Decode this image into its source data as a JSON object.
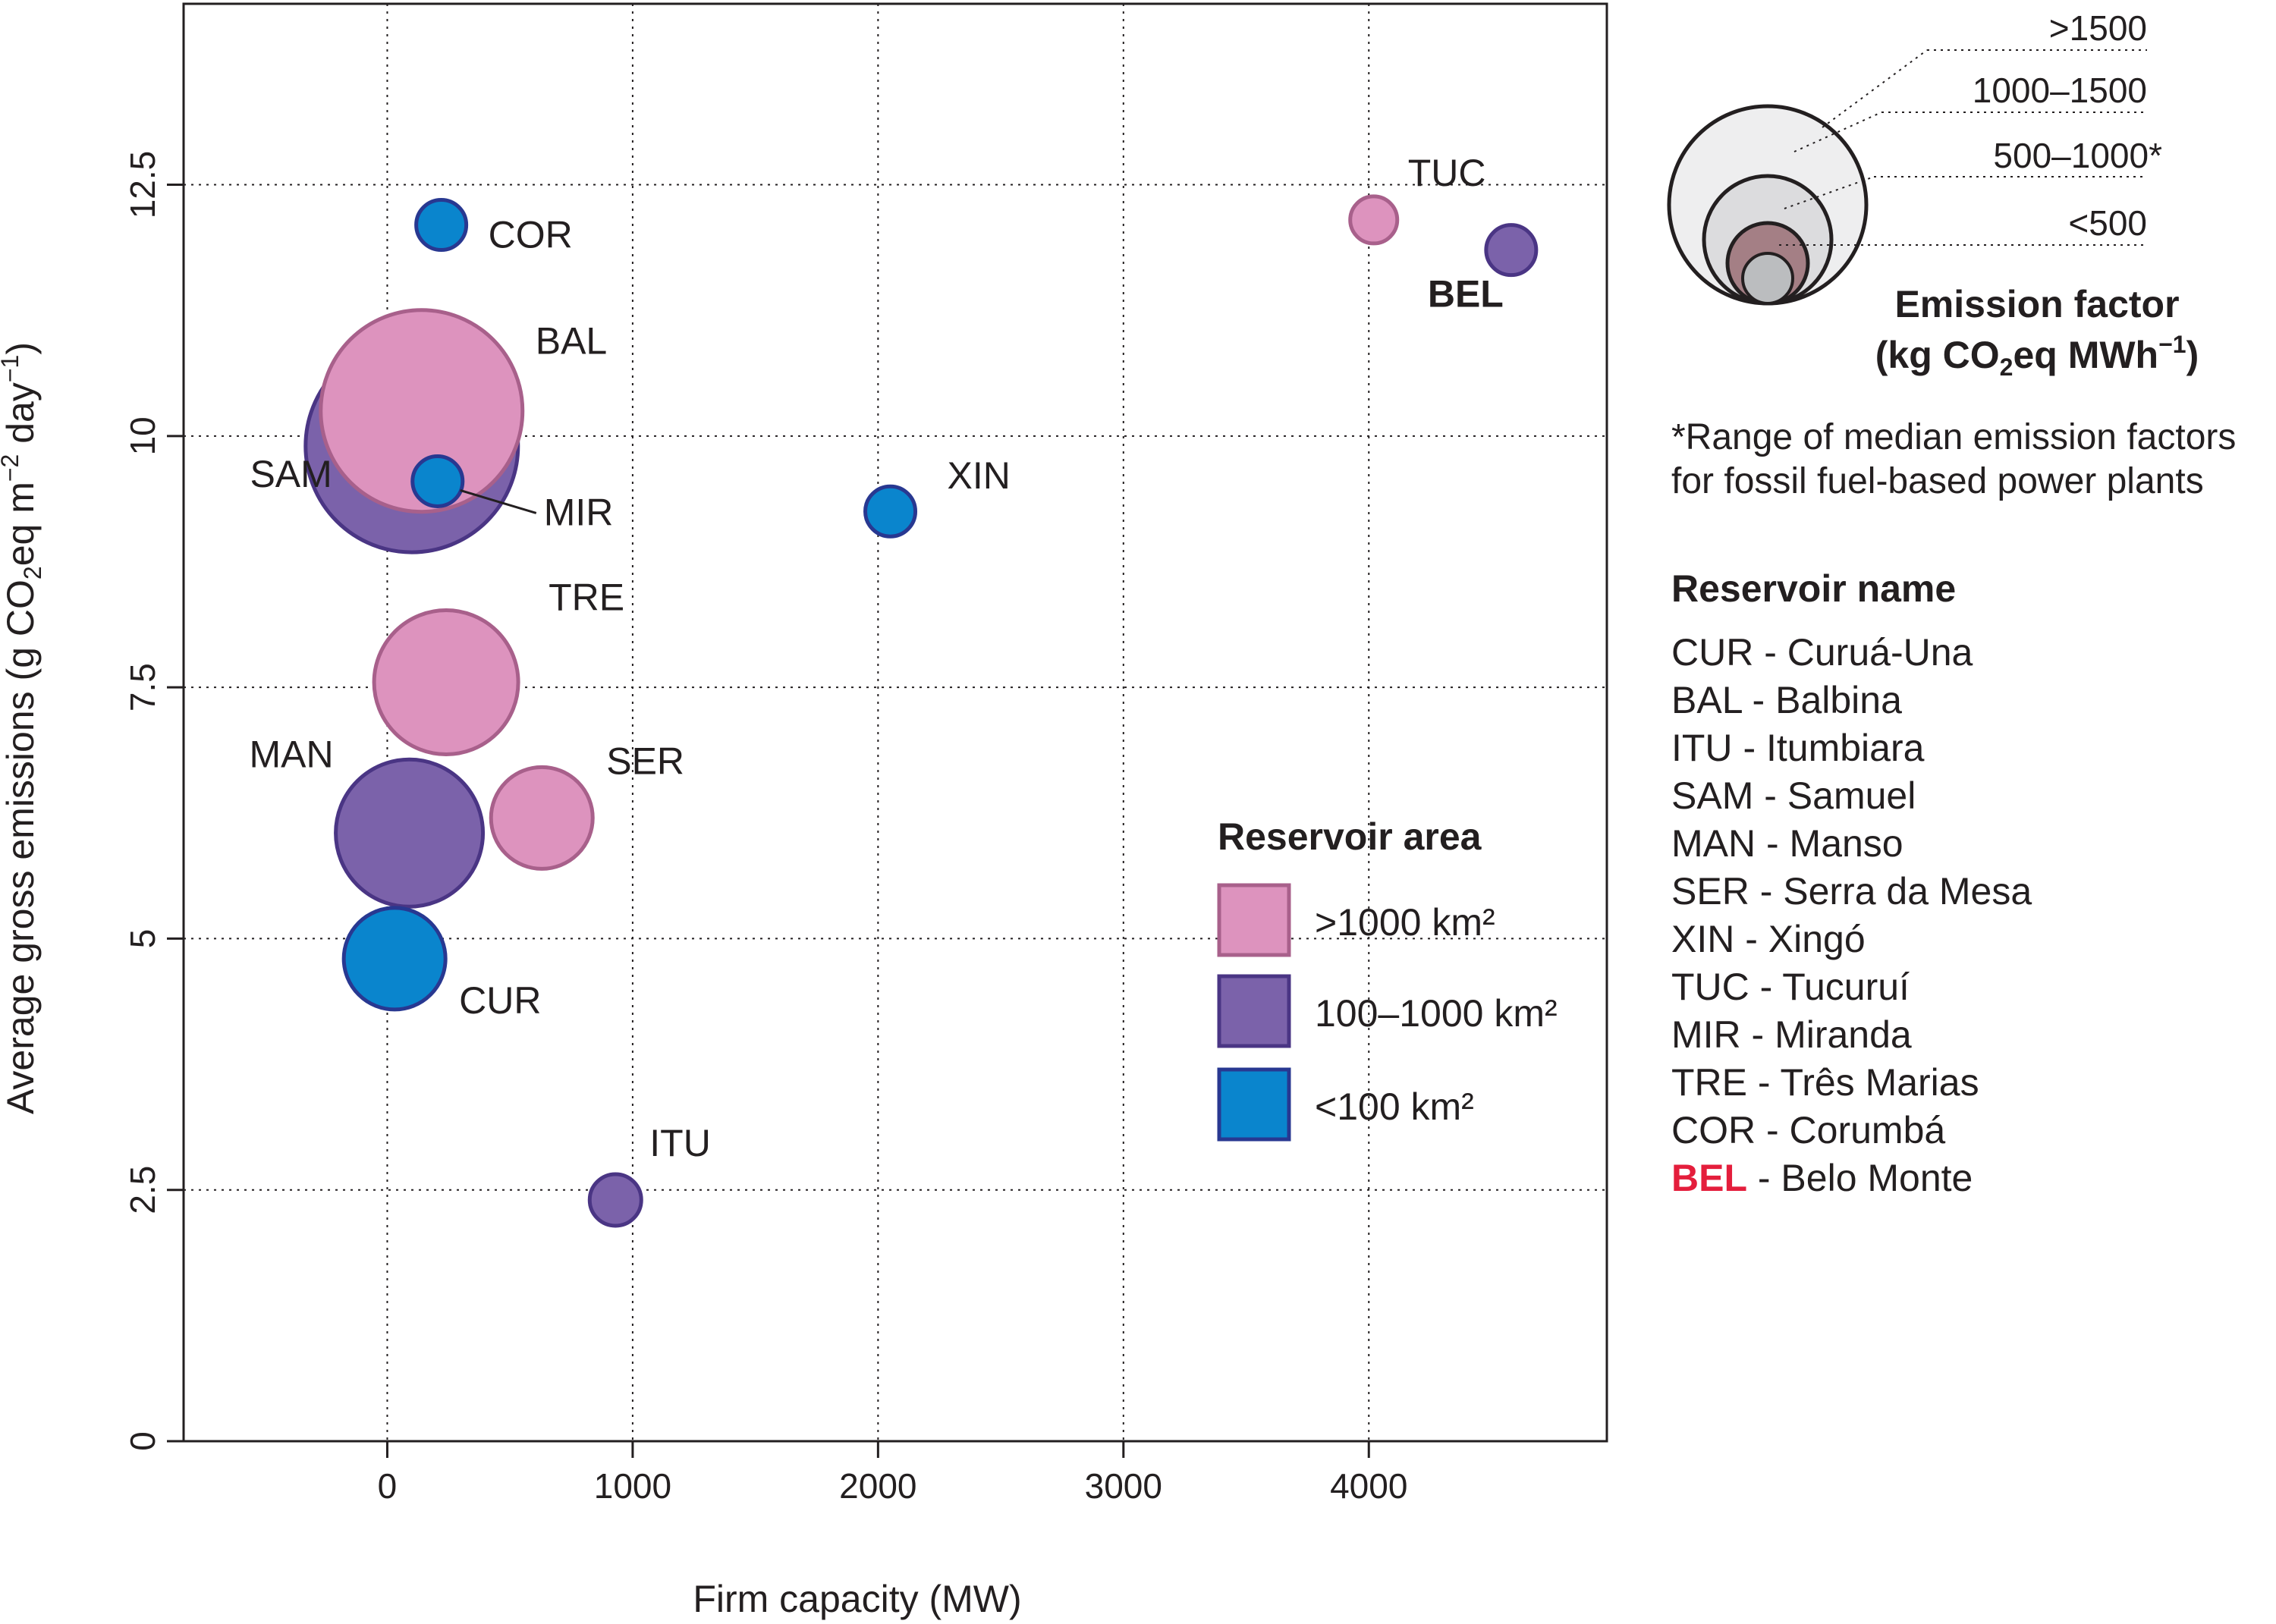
{
  "chart_data": {
    "type": "scatter",
    "xlabel": "Firm capacity (MW)",
    "ylabel": {
      "pre": "Average gross emissions (g CO",
      "sub": "2",
      "mid": "eq m",
      "sup1": "−2",
      "mid2": " day",
      "sup2": "−1",
      "post": ")"
    },
    "xlim": [
      -830,
      4970
    ],
    "ylim": [
      0,
      14.3
    ],
    "x_ticks": [
      0,
      1000,
      2000,
      3000,
      4000
    ],
    "x_tick_labels": [
      "0",
      "1000",
      "2000",
      "3000",
      "4000"
    ],
    "y_ticks": [
      0,
      2.5,
      5,
      7.5,
      10,
      12.5
    ],
    "y_tick_labels": [
      "0",
      "2.5",
      "5",
      "7.5",
      "10",
      "12.5"
    ],
    "grid": true,
    "emission_factor_classes": [
      ">1500",
      "1000–1500",
      "500–1000*",
      "<500"
    ],
    "area_classes": [
      ">1000 km²",
      "100–1000 km²",
      "<100 km²"
    ],
    "points": [
      {
        "label": "SAM",
        "x": 100,
        "y": 9.9,
        "area_class": "100–1000 km²",
        "emission_factor": ">1500"
      },
      {
        "label": "BAL",
        "x": 140,
        "y": 10.25,
        "area_class": ">1000 km²",
        "emission_factor": ">1500"
      },
      {
        "label": "MIR",
        "x": 205,
        "y": 9.55,
        "area_class": "<100 km²",
        "emission_factor": "<500"
      },
      {
        "label": "COR",
        "x": 220,
        "y": 12.1,
        "area_class": "<100 km²",
        "emission_factor": "<500"
      },
      {
        "label": "TRE",
        "x": 240,
        "y": 7.55,
        "area_class": ">1000 km²",
        "emission_factor": "500–1000*"
      },
      {
        "label": "MAN",
        "x": 90,
        "y": 6.05,
        "area_class": "100–1000 km²",
        "emission_factor": "500–1000*"
      },
      {
        "label": "SER",
        "x": 630,
        "y": 6.2,
        "area_class": ">1000 km²",
        "emission_factor": "<500"
      },
      {
        "label": "CUR",
        "x": 30,
        "y": 4.8,
        "area_class": "<100 km²",
        "emission_factor": "<500"
      },
      {
        "label": "ITU",
        "x": 930,
        "y": 2.4,
        "area_class": "100–1000 km²",
        "emission_factor": "<500"
      },
      {
        "label": "XIN",
        "x": 2050,
        "y": 9.25,
        "area_class": "<100 km²",
        "emission_factor": "<500"
      },
      {
        "label": "TUC",
        "x": 4020,
        "y": 12.15,
        "area_class": ">1000 km²",
        "emission_factor": "<500"
      },
      {
        "label": "BEL",
        "x": 4580,
        "y": 11.85,
        "area_class": "100–1000 km²",
        "emission_factor": "<500"
      }
    ]
  },
  "colors": {
    "large_fill": "#dd93be",
    "large_stroke": "#a8608b",
    "mid_fill": "#7b62aa",
    "mid_stroke": "#4a3584",
    "small_fill": "#0a85cd",
    "small_stroke": "#283891",
    "highlight": "#e41e3c",
    "ef_fills": [
      "#eeeeef",
      "#dcdcde",
      "#a47f85",
      "#bbbdbf"
    ]
  },
  "legend_area": {
    "title": "Reservoir area",
    "items": [
      ">1000 km²",
      "100–1000 km²",
      "<100 km²"
    ]
  },
  "legend_ef": {
    "labels": [
      ">1500",
      "1000–1500",
      "500–1000*",
      "<500"
    ],
    "title_line1": "Emission factor",
    "title_line2_pre": "(kg CO",
    "title_line2_sub": "2",
    "title_line2_mid": "eq MWh",
    "title_line2_sup": "−1",
    "title_line2_post": ")"
  },
  "note": {
    "line1": "*Range of median emission factors",
    "line2": "for fossil fuel-based power plants"
  },
  "names": {
    "title": "Reservoir name",
    "items": [
      {
        "code": "CUR",
        "name": " - Curuá-Una",
        "highlight": false
      },
      {
        "code": "BAL",
        "name": " - Balbina",
        "highlight": false
      },
      {
        "code": "ITU",
        "name": " - Itumbiara",
        "highlight": false
      },
      {
        "code": "SAM",
        "name": " - Samuel",
        "highlight": false
      },
      {
        "code": "MAN",
        "name": " - Manso",
        "highlight": false
      },
      {
        "code": "SER",
        "name": " - Serra da Mesa",
        "highlight": false
      },
      {
        "code": "XIN",
        "name": " - Xingó",
        "highlight": false
      },
      {
        "code": "TUC",
        "name": " - Tucuruí",
        "highlight": false
      },
      {
        "code": "MIR",
        "name": " - Miranda",
        "highlight": false
      },
      {
        "code": "TRE",
        "name": " - Três Marias",
        "highlight": false
      },
      {
        "code": "COR",
        "name": " - Corumbá",
        "highlight": false
      },
      {
        "code": "BEL",
        "name": " - Belo Monte",
        "highlight": true
      }
    ]
  }
}
